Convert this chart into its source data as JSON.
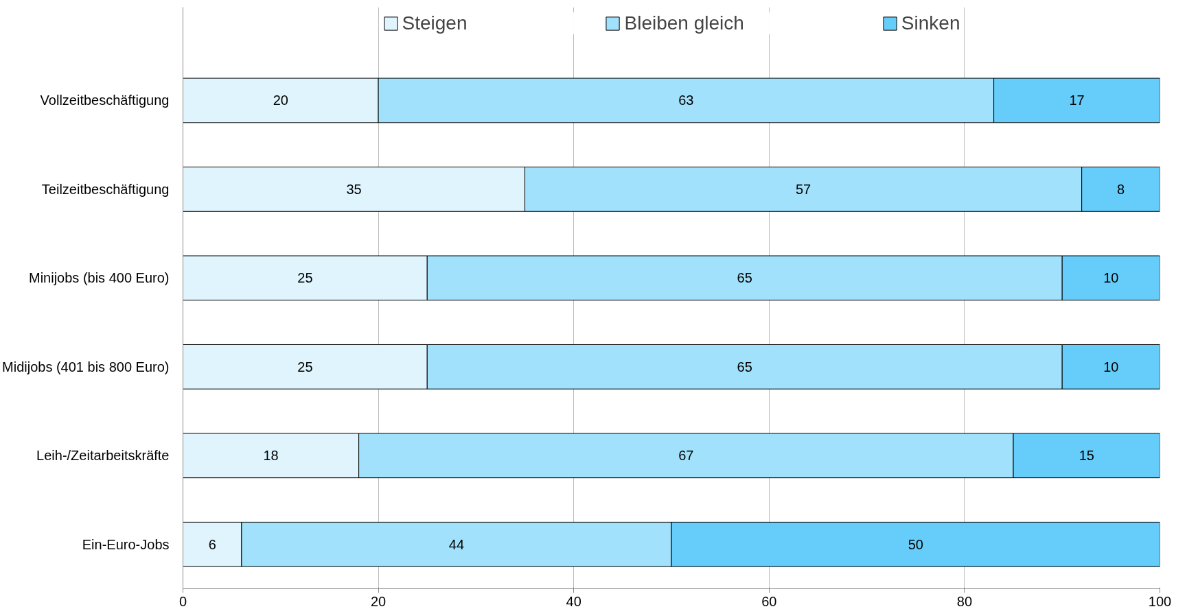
{
  "chart_data": {
    "type": "bar",
    "orientation": "horizontal",
    "stacked": true,
    "categories": [
      "Vollzeitbeschäftigung",
      "Teilzeitbeschäftigung",
      "Minijobs (bis 400 Euro)",
      "Midijobs (401 bis 800 Euro)",
      "Leih-/Zeitarbeitskräfte",
      "Ein-Euro-Jobs"
    ],
    "series": [
      {
        "name": "Steigen",
        "color": "#dff4fd",
        "values": [
          20,
          35,
          25,
          25,
          18,
          6
        ]
      },
      {
        "name": "Bleiben gleich",
        "color": "#a2e1fb",
        "values": [
          63,
          57,
          65,
          65,
          67,
          44
        ]
      },
      {
        "name": "Sinken",
        "color": "#66cdfa",
        "values": [
          17,
          8,
          10,
          10,
          15,
          50
        ]
      }
    ],
    "xlim": [
      0,
      100
    ],
    "xticks": [
      0,
      20,
      40,
      60,
      80,
      100
    ],
    "grid": "x",
    "legend": "top",
    "data_labels": true
  }
}
